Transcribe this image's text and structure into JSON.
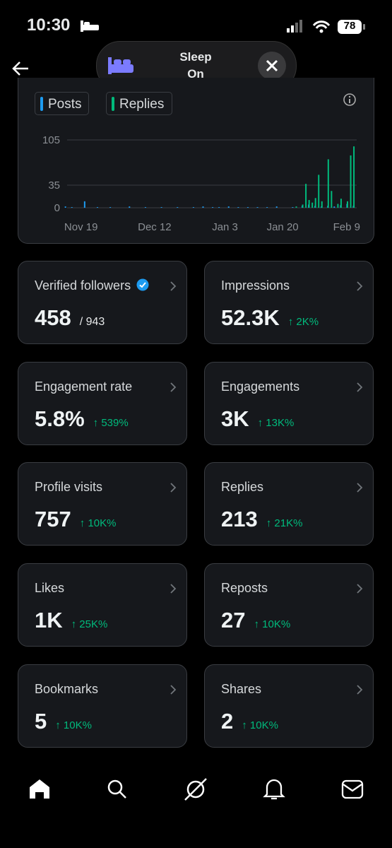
{
  "status": {
    "time": "10:30",
    "battery": "78"
  },
  "sleep": {
    "title": "Sleep",
    "state": "On"
  },
  "legend": [
    "Posts",
    "Replies"
  ],
  "chart_data": {
    "type": "bar",
    "series": [
      {
        "name": "Posts",
        "color": "#1d9bf0",
        "x": [
          0,
          2,
          6,
          10,
          14,
          20,
          25,
          30,
          35,
          40,
          43,
          46,
          48,
          51,
          54,
          57,
          60,
          63,
          66,
          71,
          74,
          76,
          78,
          80,
          82,
          84,
          86,
          88,
          90
        ],
        "values": [
          2,
          1,
          10,
          1,
          1,
          2,
          1,
          1,
          1,
          1,
          2,
          1,
          1,
          2,
          1,
          1,
          1,
          1,
          2,
          1,
          3,
          5,
          3,
          2,
          3,
          2,
          4,
          6,
          3
        ]
      },
      {
        "name": "Replies",
        "color": "#00ba7c",
        "x": [
          72,
          74,
          75,
          76,
          77,
          78,
          79,
          80,
          82,
          83,
          85,
          86,
          88,
          89,
          90
        ],
        "values": [
          2,
          5,
          37,
          12,
          8,
          15,
          51,
          10,
          75,
          26,
          6,
          14,
          10,
          81,
          95
        ]
      }
    ],
    "xlim": [
      -5,
      91
    ],
    "xticks": [
      {
        "value": 0,
        "label": "Nov 19"
      },
      {
        "value": 23,
        "label": "Dec 12"
      },
      {
        "value": 45,
        "label": "Jan 3"
      },
      {
        "value": 63,
        "label": "Jan 20"
      },
      {
        "value": 83,
        "label": "Feb 9"
      }
    ],
    "ylim": [
      0,
      105
    ],
    "yticks": [
      0,
      35,
      105
    ],
    "grid": true
  },
  "cards": [
    {
      "title": "Verified followers",
      "value": "458",
      "extra": "/ 943"
    },
    {
      "title": "Impressions",
      "value": "52.3K",
      "change": "↑ 2K%"
    },
    {
      "title": "Engagement rate",
      "value": "5.8%",
      "change": "↑ 539%"
    },
    {
      "title": "Engagements",
      "value": "3K",
      "change": "↑ 13K%"
    },
    {
      "title": "Profile visits",
      "value": "757",
      "change": "↑ 10K%"
    },
    {
      "title": "Replies",
      "value": "213",
      "change": "↑ 21K%"
    },
    {
      "title": "Likes",
      "value": "1K",
      "change": "↑ 25K%"
    },
    {
      "title": "Reposts",
      "value": "27",
      "change": "↑ 10K%"
    },
    {
      "title": "Bookmarks",
      "value": "5",
      "change": "↑ 10K%"
    },
    {
      "title": "Shares",
      "value": "2",
      "change": "↑ 10K%"
    }
  ]
}
